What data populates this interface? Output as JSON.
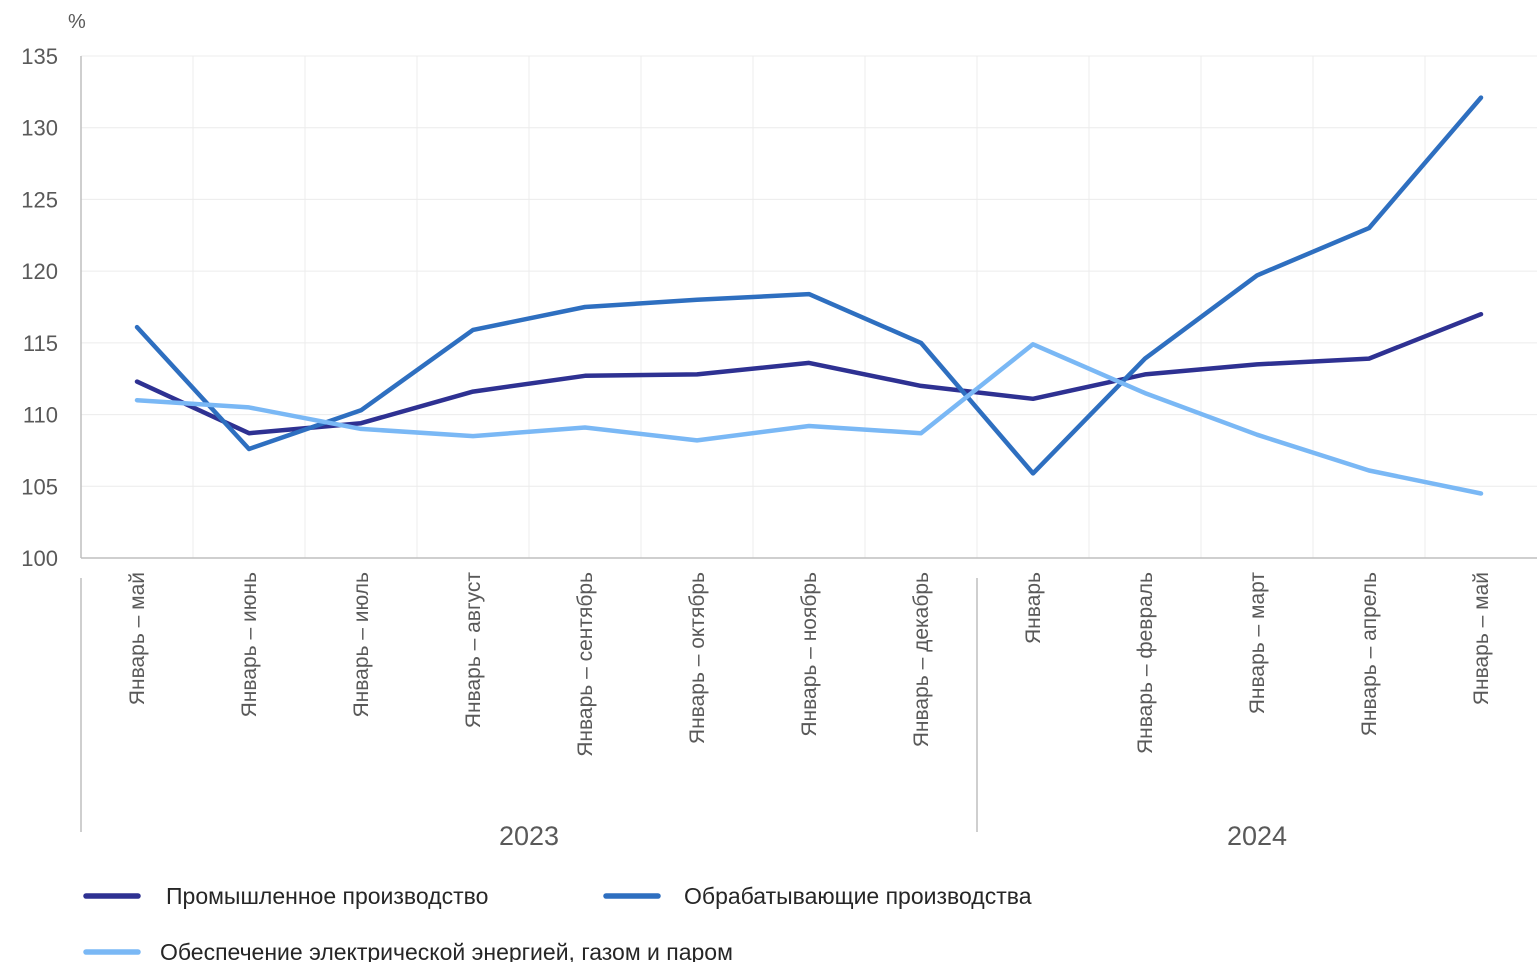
{
  "chart_data": {
    "type": "line",
    "title": "",
    "ylabel": "%",
    "xlabel": "",
    "ylim": [
      100,
      135
    ],
    "y_ticks": [
      100,
      105,
      110,
      115,
      120,
      125,
      130,
      135
    ],
    "grid": true,
    "legend_position": "bottom",
    "categories": [
      "Январь – май",
      "Январь – июнь",
      "Январь – июль",
      "Январь – август",
      "Январь – сентябрь",
      "Январь – октябрь",
      "Январь – ноябрь",
      "Январь – декабрь",
      "Январь",
      "Январь – февраль",
      "Январь – март",
      "Январь – апрель",
      "Январь – май"
    ],
    "groups": [
      {
        "label": "2023",
        "start": 0,
        "end": 7
      },
      {
        "label": "2024",
        "start": 8,
        "end": 12
      }
    ],
    "series": [
      {
        "name": "Промышленное производство",
        "color": "#2e3192",
        "values": [
          112.3,
          108.7,
          109.4,
          111.6,
          112.7,
          112.8,
          113.6,
          112.0,
          111.1,
          112.8,
          113.5,
          113.9,
          117.0
        ]
      },
      {
        "name": "Обрабатывающие производства",
        "color": "#2e6fc0",
        "values": [
          116.1,
          107.6,
          110.3,
          115.9,
          117.5,
          118.0,
          118.4,
          115.0,
          105.9,
          113.9,
          119.7,
          123.0,
          132.1
        ]
      },
      {
        "name": "Обеспечение электрической энергией, газом и паром",
        "color": "#7ab8f5",
        "values": [
          111.0,
          110.5,
          109.0,
          108.5,
          109.1,
          108.2,
          109.2,
          108.7,
          114.9,
          111.5,
          108.6,
          106.1,
          104.5
        ]
      }
    ]
  }
}
